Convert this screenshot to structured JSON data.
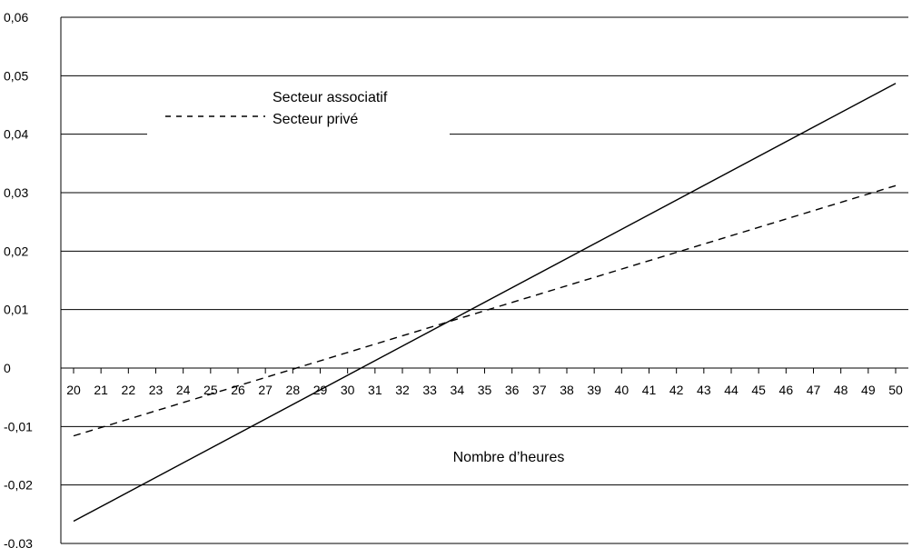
{
  "chart_data": {
    "type": "line",
    "title": "",
    "xlabel": "Nombre d’heures",
    "ylabel": "",
    "xlim": [
      20,
      50
    ],
    "ylim": [
      -0.03,
      0.06
    ],
    "y_ticks": [
      "0,06",
      "0,05",
      "0,04",
      "0,03",
      "0,02",
      "0,01",
      "0",
      "-0,01",
      "-0,02",
      "-0,03"
    ],
    "x_ticks": [
      "20",
      "21",
      "22",
      "23",
      "24",
      "25",
      "26",
      "27",
      "28",
      "29",
      "30",
      "31",
      "32",
      "33",
      "34",
      "35",
      "36",
      "37",
      "38",
      "39",
      "40",
      "41",
      "42",
      "43",
      "44",
      "45",
      "46",
      "47",
      "48",
      "49",
      "50"
    ],
    "grid": "horizontal",
    "legend_placement": "upper-left",
    "series": [
      {
        "name": "Secteur associatif",
        "style": "solid",
        "color": "#000000",
        "x": [
          20,
          50
        ],
        "y": [
          -0.0262,
          0.0487
        ]
      },
      {
        "name": "Secteur privé",
        "style": "dashed",
        "color": "#000000",
        "x": [
          20,
          50
        ],
        "y": [
          -0.0116,
          0.0312
        ]
      }
    ]
  }
}
